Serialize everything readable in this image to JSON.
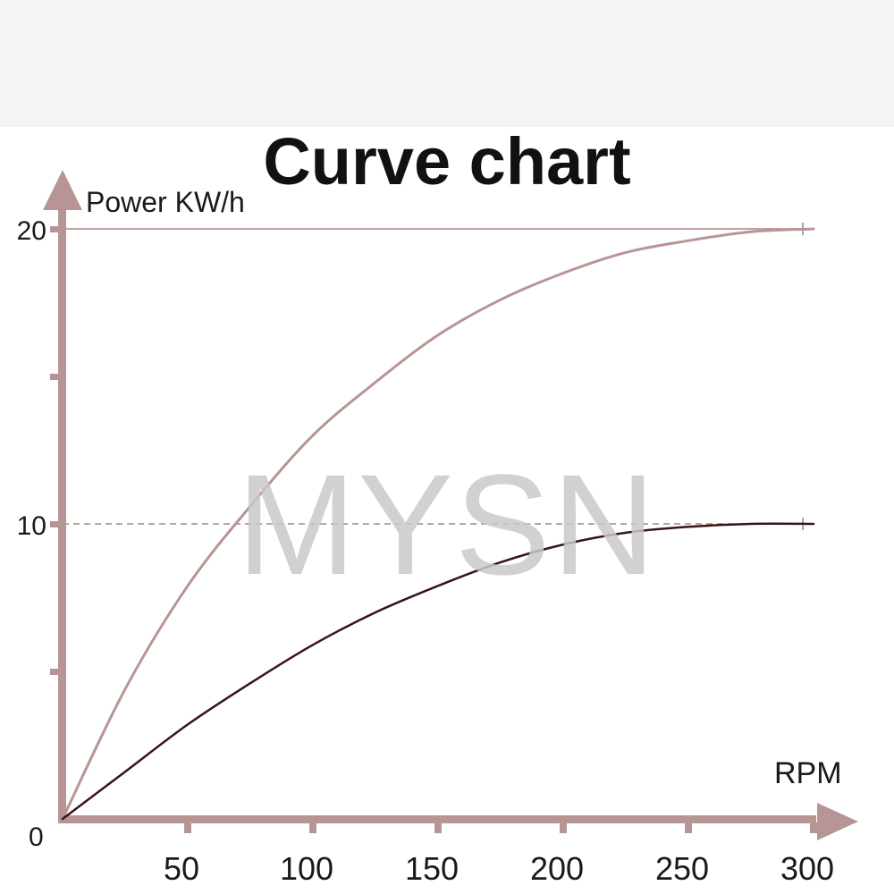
{
  "watermark": "MYSN",
  "chart_data": {
    "type": "line",
    "title": "Curve chart",
    "xlabel": "RPM",
    "ylabel": "Power KW/h",
    "x_ticks": [
      50,
      100,
      150,
      200,
      250,
      300
    ],
    "y_ticks": [
      0,
      10,
      20
    ],
    "xlim": [
      0,
      300
    ],
    "ylim": [
      0,
      20
    ],
    "reference_lines": [
      {
        "y": 20,
        "style": "solid"
      },
      {
        "y": 10,
        "style": "dashed"
      }
    ],
    "series": [
      {
        "color": "#b89595",
        "x": [
          0,
          25,
          50,
          75,
          100,
          125,
          150,
          175,
          200,
          225,
          250,
          275,
          300
        ],
        "y": [
          0,
          4.4,
          7.9,
          10.6,
          13.0,
          14.8,
          16.4,
          17.6,
          18.5,
          19.2,
          19.6,
          19.9,
          20.0
        ]
      },
      {
        "color": "#3a1414",
        "x": [
          0,
          25,
          50,
          75,
          100,
          125,
          150,
          175,
          200,
          225,
          250,
          275,
          300
        ],
        "y": [
          0,
          1.6,
          3.2,
          4.6,
          5.9,
          7.0,
          7.9,
          8.7,
          9.3,
          9.7,
          9.9,
          10.0,
          10.0
        ]
      }
    ],
    "grid": false,
    "legend": "none"
  }
}
